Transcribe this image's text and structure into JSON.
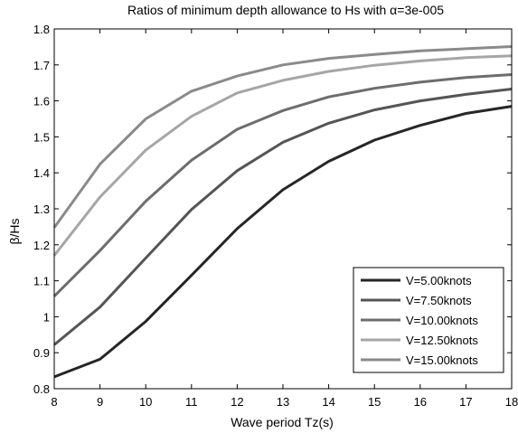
{
  "chart_data": {
    "type": "line",
    "title": {
      "prefix": "Ratios of minimum depth allowance to Hs with ",
      "symbol": "α",
      "suffix": "=3e-005"
    },
    "xlabel": "Wave period Tz(s)",
    "ylabel": "β/Hs",
    "x": [
      8,
      9,
      10,
      11,
      12,
      13,
      14,
      15,
      16,
      17,
      18
    ],
    "xlim": [
      8,
      18
    ],
    "ylim": [
      0.8,
      1.8
    ],
    "xticks": [
      "8",
      "9",
      "10",
      "11",
      "12",
      "13",
      "14",
      "15",
      "16",
      "17",
      "18"
    ],
    "yticks": [
      "0.8",
      "0.9",
      "1",
      "1.1",
      "1.2",
      "1.3",
      "1.4",
      "1.5",
      "1.6",
      "1.7",
      "1.8"
    ],
    "grid": false,
    "legend_position": "lower-right",
    "series": [
      {
        "name": "V=5.00knots",
        "color": "#262626",
        "values": [
          0.833,
          0.882,
          0.987,
          1.115,
          1.245,
          1.353,
          1.432,
          1.491,
          1.532,
          1.565,
          1.585
        ]
      },
      {
        "name": "V=7.50knots",
        "color": "#555555",
        "values": [
          0.922,
          1.027,
          1.163,
          1.298,
          1.406,
          1.485,
          1.538,
          1.575,
          1.6,
          1.618,
          1.633
        ]
      },
      {
        "name": "V=10.00knots",
        "color": "#6d6d6d",
        "values": [
          1.057,
          1.184,
          1.321,
          1.435,
          1.521,
          1.573,
          1.611,
          1.635,
          1.652,
          1.665,
          1.673
        ]
      },
      {
        "name": "V=12.50knots",
        "color": "#a6a6a6",
        "values": [
          1.17,
          1.333,
          1.463,
          1.557,
          1.622,
          1.657,
          1.682,
          1.699,
          1.711,
          1.72,
          1.725
        ]
      },
      {
        "name": "V=15.00knots",
        "color": "#8a8a8a",
        "values": [
          1.248,
          1.424,
          1.55,
          1.627,
          1.669,
          1.7,
          1.718,
          1.729,
          1.739,
          1.745,
          1.751
        ]
      }
    ]
  }
}
